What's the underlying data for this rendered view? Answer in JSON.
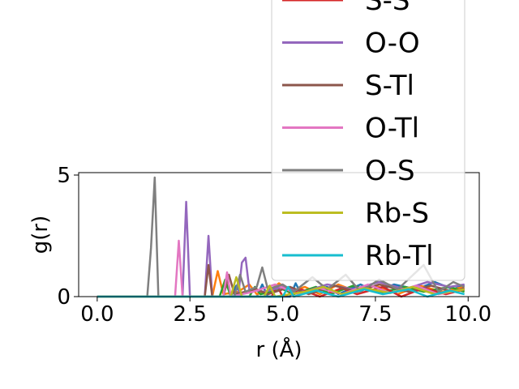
{
  "chart_data": {
    "type": "line",
    "title": "",
    "xlabel": "r (Å)",
    "ylabel": "g(r)",
    "xlim": [
      -0.5,
      10.3
    ],
    "ylim": [
      0,
      5.1
    ],
    "x_ticks": [
      "0.0",
      "2.5",
      "5.0",
      "7.5",
      "10.0"
    ],
    "x_tick_values": [
      0,
      2.5,
      5,
      7.5,
      10
    ],
    "y_ticks": [
      "0",
      "5"
    ],
    "y_tick_values": [
      0,
      5
    ],
    "grid": false,
    "legend_position": "upper-right",
    "series": [
      {
        "name": "",
        "color": "#1f77b4",
        "points": [
          [
            0,
            0
          ],
          [
            3.6,
            0
          ],
          [
            3.75,
            0.45
          ],
          [
            3.9,
            0
          ],
          [
            4.3,
            0
          ],
          [
            4.45,
            0.5
          ],
          [
            4.6,
            0
          ],
          [
            5.2,
            0
          ],
          [
            5.35,
            0.55
          ],
          [
            5.5,
            0.1
          ],
          [
            6.2,
            0.4
          ],
          [
            6.5,
            0.1
          ],
          [
            7.1,
            0.5
          ],
          [
            7.5,
            0.2
          ],
          [
            8.0,
            0.5
          ],
          [
            8.6,
            0.3
          ],
          [
            9.1,
            0.6
          ],
          [
            9.6,
            0.3
          ],
          [
            9.9,
            0.5
          ]
        ]
      },
      {
        "name": "",
        "color": "#ff7f0e",
        "points": [
          [
            0,
            0
          ],
          [
            3.1,
            0
          ],
          [
            3.25,
            1.05
          ],
          [
            3.4,
            0.1
          ],
          [
            3.8,
            0.2
          ],
          [
            4.1,
            0.5
          ],
          [
            4.3,
            0.1
          ],
          [
            4.7,
            0.3
          ],
          [
            4.9,
            0.55
          ],
          [
            5.2,
            0.2
          ],
          [
            5.6,
            0.4
          ],
          [
            6.0,
            0.1
          ],
          [
            6.5,
            0.5
          ],
          [
            7.0,
            0.2
          ],
          [
            7.5,
            0.45
          ],
          [
            8.1,
            0.1
          ],
          [
            8.7,
            0.45
          ],
          [
            9.3,
            0.2
          ],
          [
            9.9,
            0.4
          ]
        ]
      },
      {
        "name": "",
        "color": "#2ca02c",
        "points": [
          [
            0,
            0
          ],
          [
            3.3,
            0
          ],
          [
            3.45,
            0.7
          ],
          [
            3.6,
            0
          ],
          [
            4.1,
            0
          ],
          [
            4.25,
            0.4
          ],
          [
            4.4,
            0.1
          ],
          [
            5.0,
            0.3
          ],
          [
            5.3,
            0.1
          ],
          [
            5.9,
            0.4
          ],
          [
            6.3,
            0.1
          ],
          [
            6.9,
            0.45
          ],
          [
            7.6,
            0.15
          ],
          [
            8.3,
            0.4
          ],
          [
            8.8,
            0.2
          ],
          [
            9.5,
            0.4
          ],
          [
            9.9,
            0.2
          ]
        ]
      },
      {
        "name": "S-S",
        "color": "#d62728",
        "points": [
          [
            0,
            0
          ],
          [
            4.7,
            0
          ],
          [
            4.85,
            0.45
          ],
          [
            5.0,
            0
          ],
          [
            5.5,
            0.3
          ],
          [
            6.0,
            0
          ],
          [
            6.6,
            0.35
          ],
          [
            7.0,
            0.1
          ],
          [
            7.7,
            0.4
          ],
          [
            8.2,
            0
          ],
          [
            8.8,
            0.35
          ],
          [
            9.4,
            0.1
          ],
          [
            9.9,
            0.3
          ]
        ]
      },
      {
        "name": "O-O",
        "color": "#9467bd",
        "points": [
          [
            0,
            0
          ],
          [
            2.3,
            0
          ],
          [
            2.4,
            3.9
          ],
          [
            2.5,
            0
          ],
          [
            2.9,
            0
          ],
          [
            3.0,
            2.5
          ],
          [
            3.1,
            0
          ],
          [
            3.8,
            0
          ],
          [
            3.9,
            1.4
          ],
          [
            4.0,
            1.6
          ],
          [
            4.1,
            0.3
          ],
          [
            4.5,
            0.2
          ],
          [
            5.0,
            0.4
          ],
          [
            5.6,
            0.2
          ],
          [
            6.2,
            0.5
          ],
          [
            6.9,
            0.3
          ],
          [
            7.6,
            0.6
          ],
          [
            8.3,
            0.3
          ],
          [
            8.9,
            0.6
          ],
          [
            9.5,
            0.4
          ],
          [
            9.9,
            0.5
          ]
        ]
      },
      {
        "name": "S-Tl",
        "color": "#8c564b",
        "points": [
          [
            0,
            0
          ],
          [
            2.9,
            0
          ],
          [
            3.0,
            1.3
          ],
          [
            3.1,
            0
          ],
          [
            3.4,
            0
          ],
          [
            3.55,
            0.9
          ],
          [
            3.7,
            0.1
          ],
          [
            4.3,
            0.3
          ],
          [
            4.6,
            0.1
          ],
          [
            5.2,
            0.4
          ],
          [
            5.7,
            0.1
          ],
          [
            6.4,
            0.45
          ],
          [
            7.0,
            0.2
          ],
          [
            7.6,
            0.5
          ],
          [
            8.4,
            0.2
          ],
          [
            9.0,
            0.45
          ],
          [
            9.6,
            0.2
          ],
          [
            9.9,
            0.35
          ]
        ]
      },
      {
        "name": "O-Tl",
        "color": "#e377c2",
        "points": [
          [
            0,
            0
          ],
          [
            2.1,
            0
          ],
          [
            2.2,
            2.3
          ],
          [
            2.3,
            0
          ],
          [
            3.4,
            0
          ],
          [
            3.5,
            1.0
          ],
          [
            3.6,
            0
          ],
          [
            4.2,
            0.2
          ],
          [
            4.8,
            0.5
          ],
          [
            5.4,
            0.1
          ],
          [
            6.0,
            0.35
          ],
          [
            6.6,
            0.1
          ],
          [
            7.3,
            0.5
          ],
          [
            7.9,
            0.15
          ],
          [
            8.6,
            0.45
          ],
          [
            9.2,
            0.1
          ],
          [
            9.9,
            0.3
          ]
        ]
      },
      {
        "name": "O-S",
        "color": "#7f7f7f",
        "points": [
          [
            0,
            0
          ],
          [
            1.35,
            0
          ],
          [
            1.45,
            2.0
          ],
          [
            1.55,
            4.9
          ],
          [
            1.65,
            0
          ],
          [
            3.7,
            0
          ],
          [
            3.85,
            0.9
          ],
          [
            4.0,
            0.2
          ],
          [
            4.3,
            0.4
          ],
          [
            4.45,
            1.2
          ],
          [
            4.6,
            0.3
          ],
          [
            5.0,
            0.5
          ],
          [
            5.3,
            0.2
          ],
          [
            5.8,
            0.8
          ],
          [
            6.2,
            0.3
          ],
          [
            6.7,
            0.9
          ],
          [
            7.1,
            0.2
          ],
          [
            7.6,
            0.7
          ],
          [
            8.1,
            0.3
          ],
          [
            8.8,
            1.3
          ],
          [
            9.2,
            0.2
          ],
          [
            9.6,
            0.6
          ],
          [
            9.9,
            0.4
          ]
        ]
      },
      {
        "name": "Rb-S",
        "color": "#bcbd22",
        "points": [
          [
            0,
            0
          ],
          [
            3.6,
            0
          ],
          [
            3.75,
            0.8
          ],
          [
            3.9,
            0
          ],
          [
            4.5,
            0
          ],
          [
            4.65,
            0.45
          ],
          [
            4.8,
            0
          ],
          [
            5.6,
            0.2
          ],
          [
            6.1,
            0.4
          ],
          [
            6.6,
            0.1
          ],
          [
            7.2,
            0.35
          ],
          [
            7.9,
            0.15
          ],
          [
            8.5,
            0.4
          ],
          [
            9.1,
            0.1
          ],
          [
            9.9,
            0.3
          ]
        ]
      },
      {
        "name": "Rb-Tl",
        "color": "#17becf",
        "points": [
          [
            0,
            0
          ],
          [
            5.0,
            0
          ],
          [
            5.15,
            0.4
          ],
          [
            5.3,
            0
          ],
          [
            5.9,
            0.25
          ],
          [
            6.5,
            0
          ],
          [
            7.2,
            0.3
          ],
          [
            7.7,
            0.1
          ],
          [
            8.4,
            0.3
          ],
          [
            8.9,
            0
          ],
          [
            9.5,
            0.25
          ],
          [
            9.9,
            0.1
          ]
        ]
      }
    ]
  }
}
